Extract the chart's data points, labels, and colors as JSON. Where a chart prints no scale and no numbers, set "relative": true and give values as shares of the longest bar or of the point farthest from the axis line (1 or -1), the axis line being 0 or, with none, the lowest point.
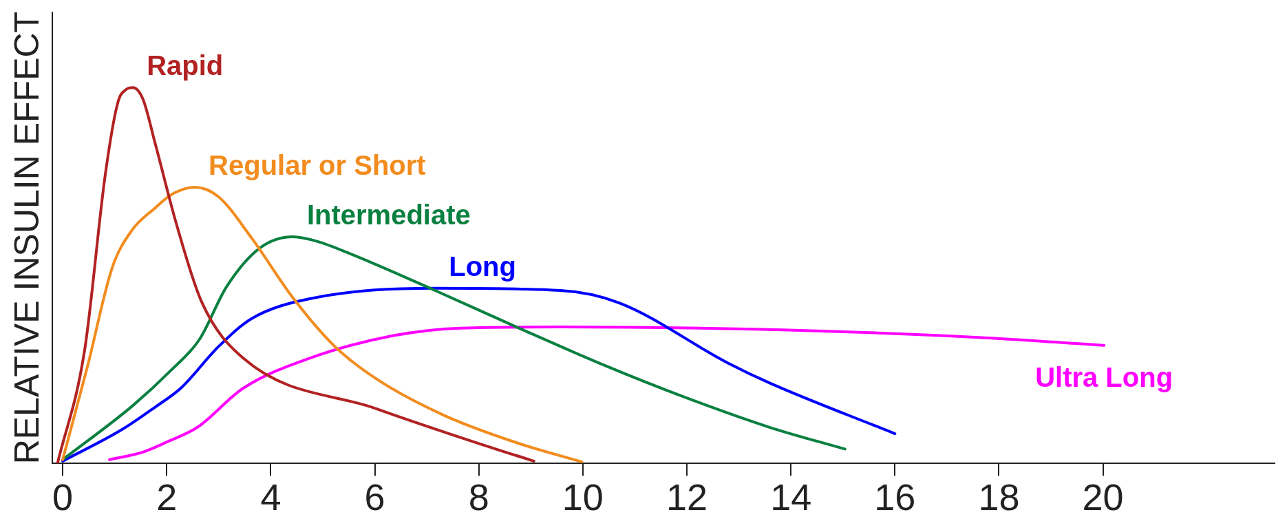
{
  "chart_data": {
    "type": "line",
    "ylabel": "RELATIVE INSULIN EFFECT",
    "relative": true,
    "xlim": [
      -0.2,
      23.3
    ],
    "xticks": [
      0,
      2,
      4,
      6,
      8,
      10,
      12,
      14,
      16,
      18,
      20
    ],
    "grid": false,
    "legend": false,
    "marker": "none",
    "line_style": "solid",
    "series": [
      {
        "name": "Rapid",
        "color": "#b22222",
        "x": [
          -0.1,
          0.42,
          0.82,
          1.06,
          1.22,
          1.35,
          1.54,
          1.78,
          2.18,
          2.67,
          3.47,
          6.04,
          8.13,
          9.06
        ],
        "values": [
          0,
          0.3,
          0.77,
          0.96,
          0.995,
          1,
          0.97,
          0.85,
          0.64,
          0.43,
          0.28,
          0.145,
          0.047,
          0.006
        ]
      },
      {
        "name": "Regular or Short",
        "color": "#f28c1e",
        "x": [
          0,
          0.48,
          0.95,
          1.33,
          1.78,
          2.1,
          2.54,
          2.99,
          3.63,
          4.43,
          5.24,
          6.04,
          7.33,
          8.77,
          9.98
        ],
        "values": [
          0.01,
          0.26,
          0.52,
          0.62,
          0.68,
          0.716,
          0.735,
          0.71,
          0.6,
          0.44,
          0.31,
          0.224,
          0.128,
          0.053,
          0.004
        ]
      },
      {
        "name": "Intermediate",
        "color": "#0a8040",
        "x": [
          0,
          1.35,
          2.1,
          2.63,
          3.15,
          3.79,
          4.43,
          4.91,
          5.56,
          7.16,
          8.77,
          10.38,
          11.98,
          13.59,
          15.04
        ],
        "values": [
          0.01,
          0.154,
          0.25,
          0.33,
          0.47,
          0.573,
          0.603,
          0.59,
          0.556,
          0.46,
          0.36,
          0.263,
          0.175,
          0.096,
          0.038
        ]
      },
      {
        "name": "Long",
        "color": "#0000ff",
        "x": [
          0,
          1.14,
          1.78,
          2.27,
          2.99,
          3.63,
          4.75,
          7.16,
          9.57,
          10.7,
          12.79,
          13.59,
          16
        ],
        "values": [
          0.006,
          0.09,
          0.15,
          0.2,
          0.31,
          0.385,
          0.438,
          0.466,
          0.46,
          0.427,
          0.267,
          0.214,
          0.079
        ]
      },
      {
        "name": "Ultra Long",
        "color": "#ff00ff",
        "x": [
          0.9,
          1.54,
          2.02,
          2.59,
          3.47,
          4.75,
          6.36,
          7.65,
          9.57,
          14.39,
          17.6,
          20.02
        ],
        "values": [
          0.01,
          0.03,
          0.058,
          0.096,
          0.2,
          0.28,
          0.34,
          0.36,
          0.363,
          0.353,
          0.335,
          0.314
        ]
      }
    ]
  }
}
